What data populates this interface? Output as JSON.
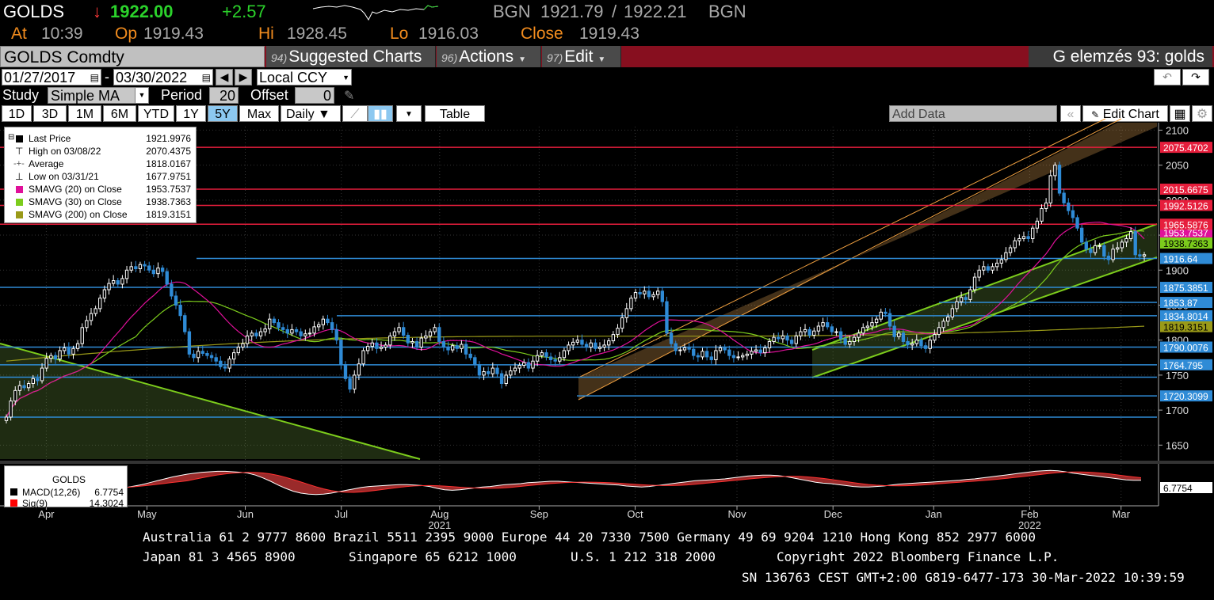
{
  "quote": {
    "ticker": "GOLDS",
    "arrow": "↓",
    "last": "1922.00",
    "change": "+2.57",
    "source1": "BGN",
    "bid": "1921.79",
    "sep": "/",
    "ask": "1922.21",
    "source2": "BGN",
    "at_label": "At",
    "at_value": "10:39",
    "op_label": "Op",
    "op_value": "1919.43",
    "hi_label": "Hi",
    "hi_value": "1928.45",
    "lo_label": "Lo",
    "lo_value": "1916.03",
    "close_label": "Close",
    "close_value": "1919.43"
  },
  "toolbar": {
    "security": "GOLDS Comdty",
    "menus": [
      {
        "num": "94)",
        "label": "Suggested Charts"
      },
      {
        "num": "96)",
        "label": "Actions"
      },
      {
        "num": "97)",
        "label": "Edit"
      }
    ],
    "context_title": "G elemzés 93: golds"
  },
  "range": {
    "start": "01/27/2017",
    "dash": "-",
    "end": "03/30/2022",
    "currency": "Local CCY"
  },
  "study": {
    "study_label": "Study",
    "study_value": "Simple MA",
    "period_label": "Period",
    "period_value": "20",
    "offset_label": "Offset",
    "offset_value": "0"
  },
  "periods": {
    "buttons": [
      "1D",
      "3D",
      "1M",
      "6M",
      "YTD",
      "1Y",
      "5Y",
      "Max"
    ],
    "selected": "5Y",
    "frequency": "Daily ▼",
    "table_label": "Table",
    "add_data_placeholder": "Add Data",
    "edit_chart_label": "Edit Chart"
  },
  "legend": [
    {
      "name": "Last Price",
      "value": "1921.9976",
      "color": "#000000",
      "kind": "box"
    },
    {
      "name": "High on 03/08/22",
      "value": "2070.4375",
      "color": "#000000",
      "kind": "high"
    },
    {
      "name": "Average",
      "value": "1818.0167",
      "color": "#000000",
      "kind": "avg"
    },
    {
      "name": "Low on 03/31/21",
      "value": "1677.9751",
      "color": "#000000",
      "kind": "low"
    },
    {
      "name": "SMAVG (20)  on Close",
      "value": "1953.7537",
      "color": "#e0109a",
      "kind": "box"
    },
    {
      "name": "SMAVG (30)  on Close",
      "value": "1938.7363",
      "color": "#7ccc1c",
      "kind": "box"
    },
    {
      "name": "SMAVG (200)  on Close",
      "value": "1819.3151",
      "color": "#9a9a18",
      "kind": "box"
    }
  ],
  "macd_legend": {
    "title": "GOLDS",
    "macd_name": "MACD(12,26)",
    "macd_value": "6.7754",
    "sig_name": "Sig(9)",
    "sig_value": "14.3024",
    "macd_color": "#000000",
    "sig_color": "#ff0000"
  },
  "chart_data": {
    "type": "candlestick",
    "ylim": [
      1630,
      2105
    ],
    "y_ticks": [
      1650,
      1700,
      1750,
      1800,
      1850,
      1900,
      1950,
      2000,
      2050,
      2100
    ],
    "x_labels": [
      {
        "label": "Apr",
        "frac": 0.04
      },
      {
        "label": "May",
        "frac": 0.127
      },
      {
        "label": "Jun",
        "frac": 0.212
      },
      {
        "label": "Jul",
        "frac": 0.295
      },
      {
        "label": "Aug",
        "frac": 0.38
      },
      {
        "label": "Sep",
        "frac": 0.466
      },
      {
        "label": "Oct",
        "frac": 0.549
      },
      {
        "label": "Nov",
        "frac": 0.637
      },
      {
        "label": "Dec",
        "frac": 0.72
      },
      {
        "label": "Jan",
        "frac": 0.807
      },
      {
        "label": "Feb",
        "frac": 0.89
      },
      {
        "label": "Mar",
        "frac": 0.969
      }
    ],
    "year_labels": [
      {
        "label": "2021",
        "frac": 0.38
      },
      {
        "label": "2022",
        "frac": 0.89
      }
    ],
    "closes": [
      1690,
      1713,
      1728,
      1735,
      1732,
      1738,
      1745,
      1742,
      1760,
      1774,
      1778,
      1773,
      1785,
      1789,
      1780,
      1788,
      1795,
      1818,
      1828,
      1838,
      1845,
      1860,
      1872,
      1881,
      1885,
      1880,
      1888,
      1900,
      1905,
      1902,
      1908,
      1906,
      1900,
      1895,
      1903,
      1898,
      1880,
      1863,
      1850,
      1835,
      1812,
      1780,
      1775,
      1784,
      1781,
      1778,
      1775,
      1770,
      1762,
      1760,
      1773,
      1782,
      1790,
      1795,
      1806,
      1810,
      1806,
      1812,
      1816,
      1830,
      1825,
      1818,
      1815,
      1810,
      1815,
      1812,
      1806,
      1809,
      1810,
      1819,
      1822,
      1830,
      1825,
      1815,
      1800,
      1765,
      1745,
      1730,
      1750,
      1766,
      1785,
      1791,
      1796,
      1788,
      1790,
      1793,
      1806,
      1812,
      1818,
      1807,
      1796,
      1798,
      1790,
      1803,
      1806,
      1812,
      1818,
      1798,
      1790,
      1786,
      1792,
      1788,
      1794,
      1780,
      1775,
      1765,
      1750,
      1755,
      1752,
      1760,
      1752,
      1738,
      1750,
      1756,
      1760,
      1764,
      1768,
      1760,
      1770,
      1778,
      1782,
      1776,
      1772,
      1770,
      1775,
      1785,
      1793,
      1797,
      1800,
      1794,
      1790,
      1796,
      1788,
      1790,
      1793,
      1799,
      1808,
      1817,
      1832,
      1845,
      1860,
      1868,
      1866,
      1870,
      1862,
      1865,
      1870,
      1855,
      1810,
      1795,
      1785,
      1786,
      1789,
      1787,
      1778,
      1776,
      1784,
      1776,
      1772,
      1785,
      1789,
      1786,
      1778,
      1775,
      1776,
      1778,
      1780,
      1784,
      1786,
      1782,
      1789,
      1798,
      1804,
      1802,
      1806,
      1800,
      1795,
      1806,
      1812,
      1815,
      1807,
      1813,
      1820,
      1825,
      1819,
      1812,
      1812,
      1802,
      1794,
      1798,
      1804,
      1810,
      1818,
      1820,
      1825,
      1830,
      1840,
      1838,
      1820,
      1805,
      1810,
      1798,
      1793,
      1795,
      1800,
      1792,
      1788,
      1800,
      1808,
      1818,
      1827,
      1833,
      1845,
      1855,
      1861,
      1858,
      1872,
      1890,
      1900,
      1905,
      1900,
      1905,
      1910,
      1915,
      1925,
      1932,
      1942,
      1945,
      1948,
      1945,
      1960,
      1970,
      1988,
      1996,
      2035,
      2050,
      2010,
      1996,
      1985,
      1975,
      1960,
      1940,
      1930,
      1925,
      1935,
      1935,
      1920,
      1915,
      1930,
      1932,
      1940,
      1945,
      1955,
      1922,
      1920,
      1922
    ],
    "sma20_last": 1953.7537,
    "sma30_last": 1938.7363,
    "sma200_last": 1819.3151,
    "hlines": [
      {
        "value": 2075.4702,
        "color": "#e61e3c",
        "label": "2075.4702"
      },
      {
        "value": 2015.6675,
        "color": "#e61e3c",
        "label": "2015.6675"
      },
      {
        "value": 1992.5126,
        "color": "#e61e3c",
        "label": "1992.5126"
      },
      {
        "value": 1965.5876,
        "color": "#e61e3c",
        "label": "1965.5876"
      },
      {
        "value": 1916.64,
        "color": "#2f8bd6",
        "label": "1916.64"
      },
      {
        "value": 1875.3851,
        "color": "#2f8bd6",
        "label": "1875.3851"
      },
      {
        "value": 1853.87,
        "color": "#2f8bd6",
        "label": "1853.87"
      },
      {
        "value": 1834.8014,
        "color": "#2f8bd6",
        "label": "1834.8014"
      },
      {
        "value": 1790.0076,
        "color": "#2f8bd6",
        "label": "1790.0076"
      },
      {
        "value": 1764.795,
        "color": "#2f8bd6",
        "label": "1764.795"
      },
      {
        "value": 1720.3099,
        "color": "#2f8bd6",
        "label": "1720.3099"
      }
    ],
    "extra_axis_labels": [
      {
        "value": 1953.7537,
        "color": "#e0109a",
        "label": "1953.7537"
      },
      {
        "value": 1938.7363,
        "color": "#7ccc1c",
        "label": "1938.7363"
      },
      {
        "value": 1819.3151,
        "color": "#9a9a18",
        "label": "1819.3151"
      }
    ],
    "macd_value_label": "6.7754",
    "macd_ylim": [
      -40,
      40
    ],
    "macd": [
      -8,
      -5,
      -2,
      2,
      6,
      10,
      14,
      17,
      20,
      22,
      24,
      25,
      26,
      26,
      25,
      24,
      22,
      18,
      12,
      5,
      -3,
      -10,
      -16,
      -20,
      -22,
      -23,
      -22,
      -20,
      -17,
      -14,
      -11,
      -8,
      -6,
      -5,
      -4,
      -3,
      -2,
      -2,
      -3,
      -4,
      -6,
      -10,
      -13,
      -14,
      -13,
      -11,
      -9,
      -7,
      -6,
      -4,
      -2,
      -1,
      0,
      2,
      3,
      4,
      5,
      5,
      4,
      3,
      2,
      1,
      0,
      -1,
      -2,
      -3,
      -5,
      -6,
      -7,
      -6,
      -4,
      -2,
      0,
      2,
      4,
      6,
      7,
      8,
      9,
      10,
      12,
      14,
      16,
      17,
      18,
      18,
      17,
      15,
      12,
      9,
      6,
      3,
      1,
      0,
      -2,
      -4,
      -6,
      -7,
      -7,
      -6,
      -5,
      -3,
      -1,
      0,
      1,
      2,
      3,
      4,
      5,
      6,
      7,
      9,
      10,
      12,
      14,
      16,
      18,
      20,
      22,
      24,
      26,
      27,
      28,
      27,
      25,
      22,
      20,
      18,
      16,
      14,
      12,
      10,
      8,
      7,
      7
    ]
  },
  "footer": {
    "line1": "Australia 61 2 9777 8600 Brazil 5511 2395 9000 Europe 44 20 7330 7500 Germany 49 69 9204 1210 Hong Kong 852 2977 6000",
    "line2a": "Japan 81 3 4565 8900",
    "line2b": "Singapore 65 6212 1000",
    "line2c": "U.S. 1 212 318 2000",
    "line2d": "Copyright 2022 Bloomberg Finance L.P.",
    "line3": "SN 136763 CEST GMT+2:00 G819-6477-173 30-Mar-2022 10:39:59"
  }
}
